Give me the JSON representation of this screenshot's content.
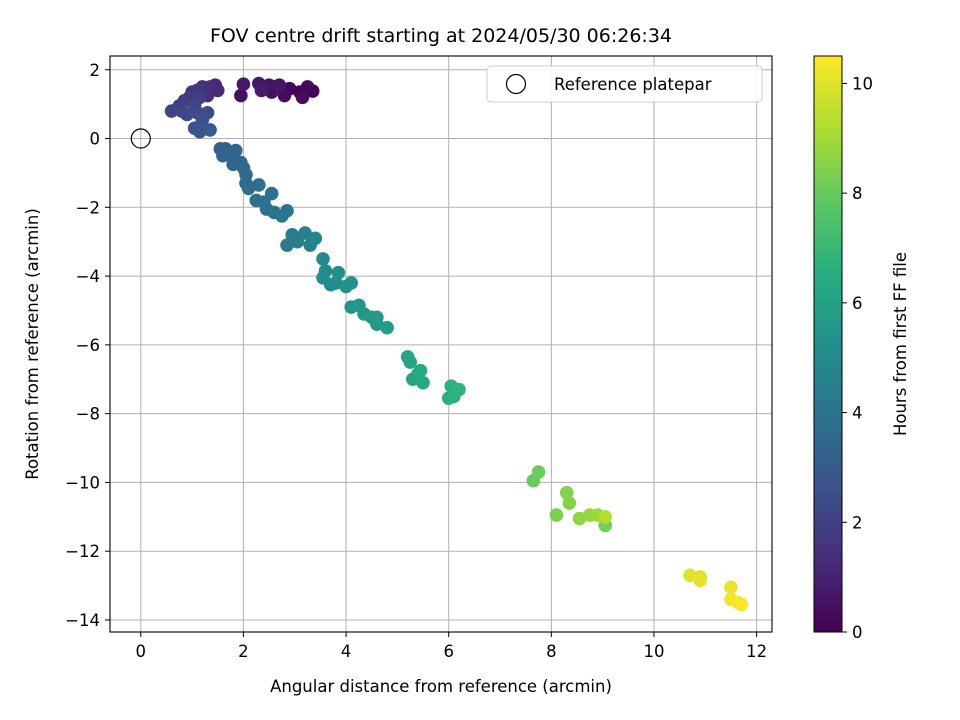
{
  "chart_data": {
    "type": "scatter",
    "title": "FOV centre drift starting at 2024/05/30 06:26:34",
    "xlabel": "Angular distance from reference (arcmin)",
    "ylabel": "Rotation from reference (arcmin)",
    "xlim": [
      -0.6,
      12.3
    ],
    "ylim": [
      -14.35,
      2.4
    ],
    "xticks": [
      0,
      2,
      4,
      6,
      8,
      10,
      12
    ],
    "yticks": [
      2,
      0,
      -2,
      -4,
      -6,
      -8,
      -10,
      -12,
      -14
    ],
    "xtick_labels": [
      "0",
      "2",
      "4",
      "6",
      "8",
      "10",
      "12"
    ],
    "ytick_labels": [
      "2",
      "0",
      "−2",
      "−4",
      "−6",
      "−8",
      "−10",
      "−12",
      "−14"
    ],
    "grid": true,
    "legend": {
      "location": "upper right",
      "entries": [
        "Reference platepar"
      ]
    },
    "reference_point": {
      "x": 0,
      "y": 0,
      "label": "Reference platepar"
    },
    "colorbar": {
      "label": "Hours from first FF file",
      "range": [
        0,
        10.5
      ],
      "ticks": [
        0,
        2,
        4,
        6,
        8,
        10
      ],
      "tick_labels": [
        "0",
        "2",
        "4",
        "6",
        "8",
        "10"
      ],
      "colormap": "viridis"
    },
    "series": [
      {
        "points": [
          {
            "x": 3.35,
            "y": 1.38,
            "t": 0.05
          },
          {
            "x": 3.1,
            "y": 1.35,
            "t": 0.15
          },
          {
            "x": 2.9,
            "y": 1.45,
            "t": 0.2
          },
          {
            "x": 3.25,
            "y": 1.5,
            "t": 0.25
          },
          {
            "x": 3.15,
            "y": 1.2,
            "t": 0.3
          },
          {
            "x": 2.8,
            "y": 1.25,
            "t": 0.35
          },
          {
            "x": 2.6,
            "y": 1.5,
            "t": 0.4
          },
          {
            "x": 2.55,
            "y": 1.35,
            "t": 0.45
          },
          {
            "x": 1.95,
            "y": 1.25,
            "t": 0.5
          },
          {
            "x": 2.5,
            "y": 1.55,
            "t": 0.55
          },
          {
            "x": 2.4,
            "y": 1.45,
            "t": 0.6
          },
          {
            "x": 2.7,
            "y": 1.55,
            "t": 0.65
          },
          {
            "x": 2.3,
            "y": 1.6,
            "t": 0.7
          },
          {
            "x": 2.0,
            "y": 1.58,
            "t": 0.75
          },
          {
            "x": 2.35,
            "y": 1.4,
            "t": 0.8
          },
          {
            "x": 1.45,
            "y": 1.55,
            "t": 1.1
          },
          {
            "x": 1.5,
            "y": 1.4,
            "t": 1.2
          },
          {
            "x": 1.35,
            "y": 1.5,
            "t": 1.3
          },
          {
            "x": 1.3,
            "y": 1.25,
            "t": 1.4
          },
          {
            "x": 1.2,
            "y": 1.5,
            "t": 1.5
          },
          {
            "x": 1.1,
            "y": 1.4,
            "t": 1.6
          },
          {
            "x": 1.0,
            "y": 1.35,
            "t": 1.7
          },
          {
            "x": 0.95,
            "y": 1.2,
            "t": 1.8
          },
          {
            "x": 0.85,
            "y": 1.1,
            "t": 1.9
          },
          {
            "x": 1.15,
            "y": 1.2,
            "t": 1.95
          },
          {
            "x": 0.75,
            "y": 0.95,
            "t": 2.0
          },
          {
            "x": 0.6,
            "y": 0.8,
            "t": 2.1
          },
          {
            "x": 0.8,
            "y": 0.8,
            "t": 2.15
          },
          {
            "x": 1.05,
            "y": 0.95,
            "t": 2.2
          },
          {
            "x": 0.9,
            "y": 0.7,
            "t": 2.3
          },
          {
            "x": 1.1,
            "y": 0.75,
            "t": 2.4
          },
          {
            "x": 1.3,
            "y": 0.75,
            "t": 2.5
          },
          {
            "x": 1.2,
            "y": 0.55,
            "t": 2.6
          },
          {
            "x": 1.05,
            "y": 0.3,
            "t": 2.7
          },
          {
            "x": 1.15,
            "y": 0.2,
            "t": 2.8
          },
          {
            "x": 1.35,
            "y": 0.25,
            "t": 2.9
          },
          {
            "x": 1.55,
            "y": -0.3,
            "t": 3.1
          },
          {
            "x": 1.65,
            "y": -0.3,
            "t": 3.2
          },
          {
            "x": 1.75,
            "y": -0.45,
            "t": 3.3
          },
          {
            "x": 1.6,
            "y": -0.5,
            "t": 3.35
          },
          {
            "x": 1.85,
            "y": -0.35,
            "t": 3.4
          },
          {
            "x": 1.8,
            "y": -0.75,
            "t": 3.45
          },
          {
            "x": 1.95,
            "y": -0.7,
            "t": 3.5
          },
          {
            "x": 2.0,
            "y": -0.85,
            "t": 3.55
          },
          {
            "x": 2.05,
            "y": -1.05,
            "t": 3.6
          },
          {
            "x": 2.05,
            "y": -1.3,
            "t": 3.65
          },
          {
            "x": 2.1,
            "y": -1.45,
            "t": 3.7
          },
          {
            "x": 2.3,
            "y": -1.35,
            "t": 3.75
          },
          {
            "x": 2.25,
            "y": -1.8,
            "t": 3.8
          },
          {
            "x": 2.4,
            "y": -1.85,
            "t": 3.85
          },
          {
            "x": 2.55,
            "y": -1.6,
            "t": 3.9
          },
          {
            "x": 2.45,
            "y": -2.05,
            "t": 3.95
          },
          {
            "x": 2.6,
            "y": -2.15,
            "t": 4.0
          },
          {
            "x": 2.75,
            "y": -2.25,
            "t": 4.05
          },
          {
            "x": 2.85,
            "y": -2.1,
            "t": 4.1
          },
          {
            "x": 2.85,
            "y": -3.1,
            "t": 4.3
          },
          {
            "x": 2.95,
            "y": -2.8,
            "t": 4.4
          },
          {
            "x": 3.05,
            "y": -3.0,
            "t": 4.5
          },
          {
            "x": 3.2,
            "y": -2.75,
            "t": 4.6
          },
          {
            "x": 3.3,
            "y": -3.1,
            "t": 4.65
          },
          {
            "x": 3.4,
            "y": -2.9,
            "t": 4.7
          },
          {
            "x": 3.55,
            "y": -3.5,
            "t": 4.9
          },
          {
            "x": 3.6,
            "y": -3.85,
            "t": 5.0
          },
          {
            "x": 3.55,
            "y": -4.05,
            "t": 5.05
          },
          {
            "x": 3.7,
            "y": -4.25,
            "t": 5.1
          },
          {
            "x": 3.85,
            "y": -3.9,
            "t": 5.15
          },
          {
            "x": 3.8,
            "y": -4.2,
            "t": 5.2
          },
          {
            "x": 4.0,
            "y": -4.3,
            "t": 5.3
          },
          {
            "x": 4.1,
            "y": -4.2,
            "t": 5.35
          },
          {
            "x": 4.1,
            "y": -4.9,
            "t": 5.45
          },
          {
            "x": 4.25,
            "y": -4.85,
            "t": 5.5
          },
          {
            "x": 4.35,
            "y": -5.1,
            "t": 5.55
          },
          {
            "x": 4.5,
            "y": -5.2,
            "t": 5.6
          },
          {
            "x": 4.6,
            "y": -5.4,
            "t": 5.65
          },
          {
            "x": 4.6,
            "y": -5.2,
            "t": 5.7
          },
          {
            "x": 4.8,
            "y": -5.5,
            "t": 5.75
          },
          {
            "x": 5.2,
            "y": -6.35,
            "t": 6.1
          },
          {
            "x": 5.25,
            "y": -6.5,
            "t": 6.15
          },
          {
            "x": 5.3,
            "y": -7.0,
            "t": 6.2
          },
          {
            "x": 5.4,
            "y": -6.85,
            "t": 6.25
          },
          {
            "x": 5.5,
            "y": -7.1,
            "t": 6.3
          },
          {
            "x": 5.45,
            "y": -6.75,
            "t": 6.35
          },
          {
            "x": 6.0,
            "y": -7.55,
            "t": 6.6
          },
          {
            "x": 6.05,
            "y": -7.2,
            "t": 6.65
          },
          {
            "x": 6.1,
            "y": -7.5,
            "t": 6.7
          },
          {
            "x": 6.2,
            "y": -7.3,
            "t": 6.75
          },
          {
            "x": 7.65,
            "y": -9.95,
            "t": 8.0
          },
          {
            "x": 7.75,
            "y": -9.7,
            "t": 8.05
          },
          {
            "x": 8.1,
            "y": -10.95,
            "t": 8.4
          },
          {
            "x": 8.3,
            "y": -10.3,
            "t": 8.5
          },
          {
            "x": 8.35,
            "y": -10.6,
            "t": 8.55
          },
          {
            "x": 8.55,
            "y": -11.05,
            "t": 8.7
          },
          {
            "x": 8.75,
            "y": -10.95,
            "t": 8.8
          },
          {
            "x": 8.9,
            "y": -10.95,
            "t": 8.9
          },
          {
            "x": 9.05,
            "y": -11.25,
            "t": 8.2
          },
          {
            "x": 9.05,
            "y": -11.0,
            "t": 9.3
          },
          {
            "x": 10.7,
            "y": -12.7,
            "t": 10.0
          },
          {
            "x": 10.9,
            "y": -12.75,
            "t": 10.05
          },
          {
            "x": 10.9,
            "y": -12.85,
            "t": 10.1
          },
          {
            "x": 11.5,
            "y": -13.05,
            "t": 10.2
          },
          {
            "x": 11.5,
            "y": -13.4,
            "t": 10.3
          },
          {
            "x": 11.65,
            "y": -13.5,
            "t": 10.4
          },
          {
            "x": 11.7,
            "y": -13.55,
            "t": 10.45
          }
        ]
      }
    ]
  }
}
